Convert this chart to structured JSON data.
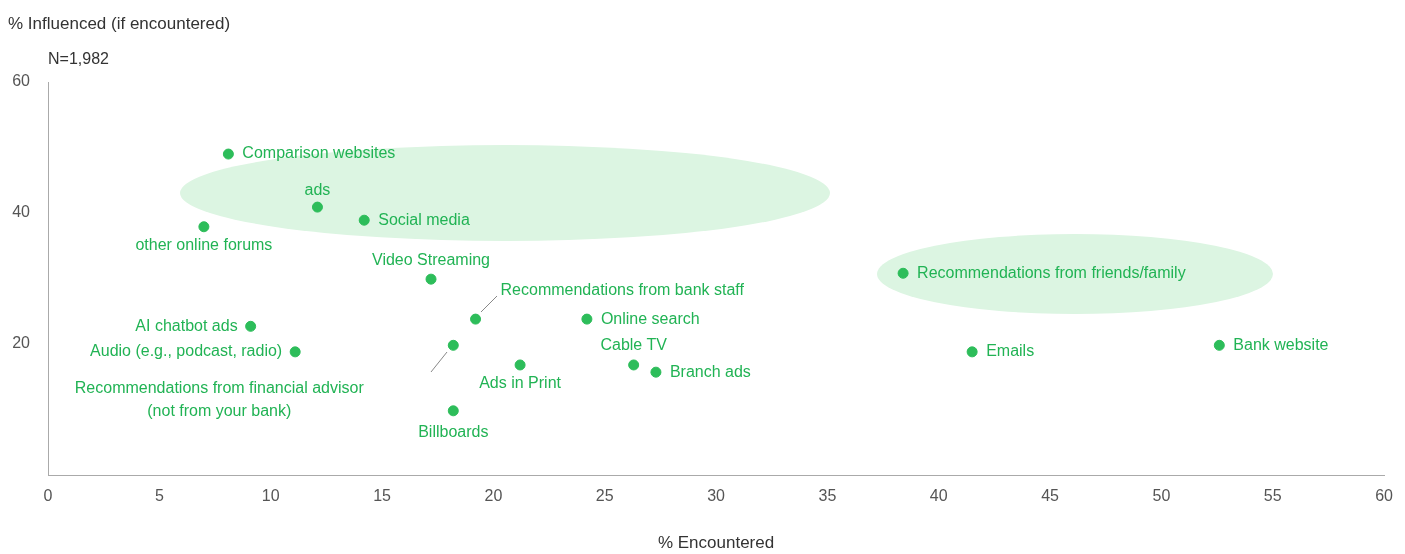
{
  "chart_data": {
    "type": "scatter",
    "xlabel": "% Encountered",
    "ylabel": "% Influenced (if encountered)",
    "color": "#2dbd5a",
    "marker": "circle",
    "grid": false,
    "x": [
      8.1,
      12.1,
      14.2,
      7.0,
      17.2,
      38.4,
      19.2,
      24.2,
      9.1,
      11.1,
      18.2,
      21.2,
      26.3,
      27.3,
      41.5,
      52.6,
      18.2
    ],
    "values": [
      49,
      40.9,
      38.9,
      37.9,
      29.9,
      30.8,
      23.8,
      23.8,
      22.7,
      18.8,
      19.8,
      16.8,
      16.8,
      15.7,
      18.8,
      19.8,
      9.8
    ],
    "xlim": [
      0,
      60
    ],
    "xticks": [
      0,
      5,
      10,
      15,
      20,
      25,
      30,
      35,
      40,
      45,
      50,
      55,
      60
    ],
    "ylim": [
      0,
      60
    ],
    "yticks": [
      20,
      40,
      60
    ],
    "annotations": [
      "N=1,982",
      {
        "text": "Comparison websites",
        "x": 8.1,
        "y": 49
      },
      {
        "text": "ads",
        "x": 12.1,
        "y": 40.9
      },
      {
        "text": "Social media",
        "x": 14.2,
        "y": 38.9
      },
      {
        "text": "other online forums",
        "x": 7.0,
        "y": 37.9
      },
      {
        "text": "Video Streaming",
        "x": 17.2,
        "y": 29.9
      },
      {
        "text": "Recommendations from friends/family",
        "x": 38.4,
        "y": 30.8
      },
      {
        "text": "Recommendations from bank staff",
        "x": 19.2,
        "y": 23.8
      },
      {
        "text": "Online search",
        "x": 24.2,
        "y": 23.8
      },
      {
        "text": "AI chatbot ads",
        "x": 9.1,
        "y": 22.7
      },
      {
        "text": "Audio (e.g., podcast, radio)",
        "x": 11.1,
        "y": 18.8
      },
      "Recommendations from financial advisor\n(not from your bank)",
      {
        "text": "Ads in Print",
        "x": 21.2,
        "y": 16.8
      },
      {
        "text": "Cable TV",
        "x": 26.3,
        "y": 16.8
      },
      {
        "text": "Branch ads",
        "x": 27.3,
        "y": 15.7
      },
      {
        "text": "Emails",
        "x": 41.5,
        "y": 18.8
      },
      {
        "text": "Bank website",
        "x": 52.6,
        "y": 19.8
      },
      {
        "text": "Billboards",
        "x": 18.2,
        "y": 9.8
      }
    ]
  }
}
